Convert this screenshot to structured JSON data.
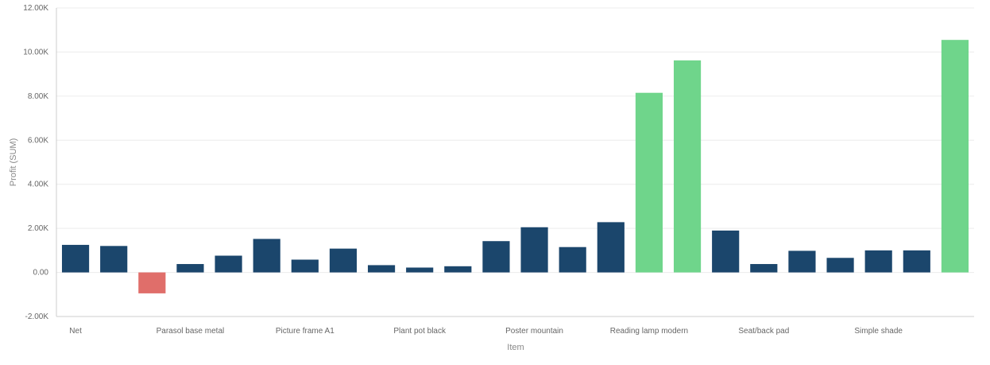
{
  "chart_data": {
    "type": "bar",
    "xlabel": "Item",
    "ylabel": "Profit (SUM)",
    "ylim": [
      -2000,
      12000
    ],
    "yticks": [
      {
        "value": -2000,
        "label": "-2.00K"
      },
      {
        "value": 0,
        "label": "0.00"
      },
      {
        "value": 2000,
        "label": "2.00K"
      },
      {
        "value": 4000,
        "label": "4.00K"
      },
      {
        "value": 6000,
        "label": "6.00K"
      },
      {
        "value": 8000,
        "label": "8.00K"
      },
      {
        "value": 10000,
        "label": "10.00K"
      },
      {
        "value": 12000,
        "label": "12.00K"
      }
    ],
    "x_tick_labels": [
      {
        "index": 0,
        "label": "Net"
      },
      {
        "index": 3,
        "label": "Parasol base metal"
      },
      {
        "index": 6,
        "label": "Picture frame A1"
      },
      {
        "index": 9,
        "label": "Plant pot black"
      },
      {
        "index": 12,
        "label": "Poster mountain"
      },
      {
        "index": 15,
        "label": "Reading lamp modern"
      },
      {
        "index": 18,
        "label": "Seat/back pad"
      },
      {
        "index": 21,
        "label": "Simple shade"
      }
    ],
    "values": [
      1250,
      1200,
      -950,
      380,
      760,
      1520,
      580,
      1080,
      330,
      220,
      280,
      1420,
      2050,
      1150,
      2280,
      8150,
      9620,
      1900,
      380,
      980,
      660,
      1000,
      1000,
      10550
    ],
    "colors": {
      "default": "#1b466c",
      "negative": "#e06e6a",
      "high": "#6fd58b",
      "grid": "#ececec",
      "axis": "#cccccc"
    },
    "grid": true
  }
}
